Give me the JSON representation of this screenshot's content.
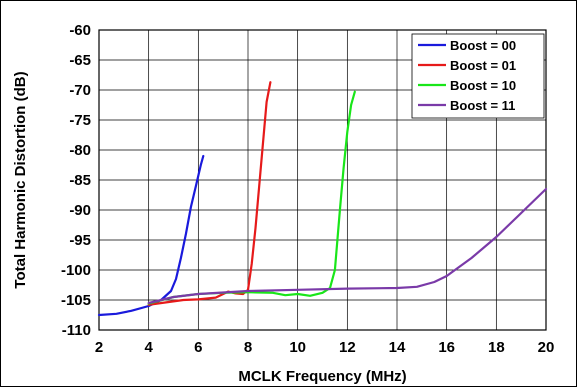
{
  "chart_data": {
    "type": "line",
    "title": "",
    "xlabel": "MCLK Frequency (MHz)",
    "ylabel": "Total Harmonic Distortion (dB)",
    "xlim": [
      2,
      20
    ],
    "ylim": [
      -110,
      -60
    ],
    "x_ticks": [
      2,
      4,
      6,
      8,
      10,
      12,
      14,
      16,
      18,
      20
    ],
    "y_ticks": [
      -60,
      -65,
      -70,
      -75,
      -80,
      -85,
      -90,
      -95,
      -100,
      -105,
      -110
    ],
    "grid": true,
    "legend_position": "top-right",
    "series": [
      {
        "name": "Boost = 00",
        "color": "#1a1adc",
        "points": [
          [
            2.0,
            -107.5
          ],
          [
            2.7,
            -107.3
          ],
          [
            3.3,
            -106.8
          ],
          [
            4.0,
            -106.0
          ],
          [
            4.5,
            -105.0
          ],
          [
            4.9,
            -103.5
          ],
          [
            5.1,
            -101.5
          ],
          [
            5.3,
            -98.0
          ],
          [
            5.5,
            -94.0
          ],
          [
            5.7,
            -89.5
          ],
          [
            5.9,
            -86.0
          ],
          [
            6.1,
            -82.5
          ],
          [
            6.2,
            -81.0
          ]
        ]
      },
      {
        "name": "Boost = 01",
        "color": "#e61a1a",
        "points": [
          [
            4.0,
            -105.8
          ],
          [
            4.7,
            -105.4
          ],
          [
            5.4,
            -105.0
          ],
          [
            6.0,
            -104.9
          ],
          [
            6.7,
            -104.6
          ],
          [
            7.2,
            -103.6
          ],
          [
            7.5,
            -103.9
          ],
          [
            7.8,
            -104.0
          ],
          [
            8.0,
            -103.3
          ],
          [
            8.15,
            -99.0
          ],
          [
            8.3,
            -93.0
          ],
          [
            8.45,
            -86.0
          ],
          [
            8.6,
            -79.0
          ],
          [
            8.75,
            -72.0
          ],
          [
            8.9,
            -68.7
          ]
        ]
      },
      {
        "name": "Boost = 10",
        "color": "#19e619",
        "points": [
          [
            4.0,
            -105.6
          ],
          [
            5.0,
            -104.5
          ],
          [
            6.0,
            -104.0
          ],
          [
            7.0,
            -103.8
          ],
          [
            8.0,
            -103.7
          ],
          [
            9.0,
            -103.8
          ],
          [
            9.5,
            -104.2
          ],
          [
            10.0,
            -104.0
          ],
          [
            10.5,
            -104.3
          ],
          [
            11.0,
            -103.8
          ],
          [
            11.3,
            -103.0
          ],
          [
            11.5,
            -100.0
          ],
          [
            11.7,
            -90.0
          ],
          [
            11.85,
            -83.0
          ],
          [
            12.0,
            -77.0
          ],
          [
            12.15,
            -72.5
          ],
          [
            12.3,
            -70.3
          ]
        ]
      },
      {
        "name": "Boost = 11",
        "color": "#7a3aa8",
        "points": [
          [
            4.0,
            -105.5
          ],
          [
            5.0,
            -104.5
          ],
          [
            6.0,
            -104.0
          ],
          [
            8.0,
            -103.5
          ],
          [
            10.0,
            -103.3
          ],
          [
            12.0,
            -103.1
          ],
          [
            14.0,
            -103.0
          ],
          [
            14.8,
            -102.8
          ],
          [
            15.5,
            -102.0
          ],
          [
            16.0,
            -101.0
          ],
          [
            17.0,
            -98.0
          ],
          [
            18.0,
            -94.5
          ],
          [
            19.0,
            -90.5
          ],
          [
            20.0,
            -86.5
          ]
        ]
      }
    ]
  }
}
